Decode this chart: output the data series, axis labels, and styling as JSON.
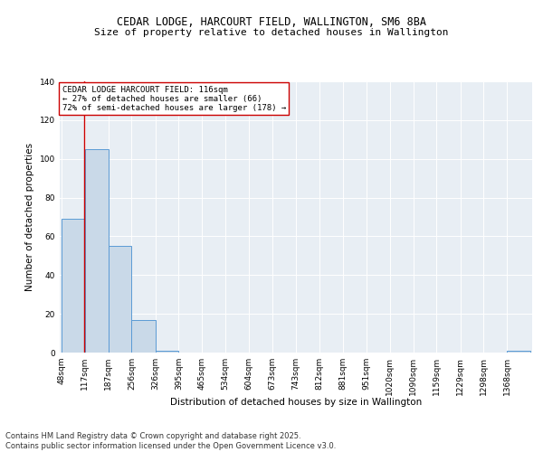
{
  "title_line1": "CEDAR LODGE, HARCOURT FIELD, WALLINGTON, SM6 8BA",
  "title_line2": "Size of property relative to detached houses in Wallington",
  "xlabel": "Distribution of detached houses by size in Wallington",
  "ylabel": "Number of detached properties",
  "bar_edges": [
    48,
    117,
    187,
    256,
    326,
    395,
    465,
    534,
    604,
    673,
    743,
    812,
    881,
    951,
    1020,
    1090,
    1159,
    1229,
    1298,
    1368,
    1437
  ],
  "bar_heights": [
    69,
    105,
    55,
    17,
    1,
    0,
    0,
    0,
    0,
    0,
    0,
    0,
    0,
    0,
    0,
    0,
    0,
    0,
    0,
    1
  ],
  "bar_color": "#c9d9e8",
  "bar_edge_color": "#5b9bd5",
  "vline_x": 116,
  "vline_color": "#cc0000",
  "annotation_text": "CEDAR LODGE HARCOURT FIELD: 116sqm\n← 27% of detached houses are smaller (66)\n72% of semi-detached houses are larger (178) →",
  "annotation_box_color": "white",
  "annotation_border_color": "#cc0000",
  "ylim": [
    0,
    140
  ],
  "yticks": [
    0,
    20,
    40,
    60,
    80,
    100,
    120,
    140
  ],
  "background_color": "#e8eef4",
  "footer_text": "Contains HM Land Registry data © Crown copyright and database right 2025.\nContains public sector information licensed under the Open Government Licence v3.0.",
  "title_fontsize": 8.5,
  "subtitle_fontsize": 8,
  "axis_label_fontsize": 7.5,
  "tick_fontsize": 6.5,
  "annotation_fontsize": 6.5,
  "footer_fontsize": 6
}
